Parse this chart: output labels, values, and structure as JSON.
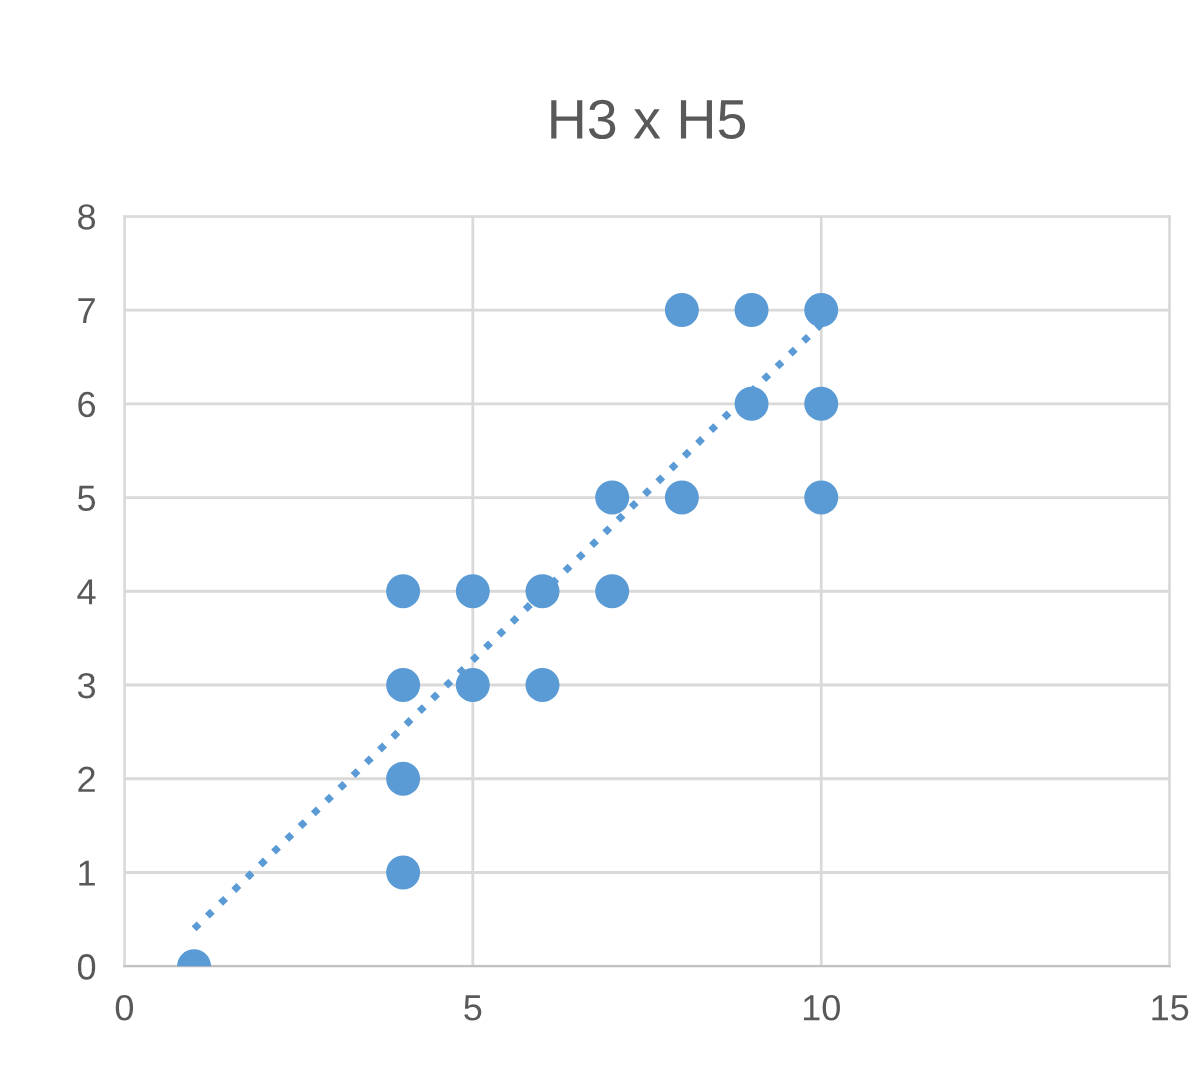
{
  "chart_data": {
    "type": "scatter",
    "title": "H3 x H5",
    "series": [
      {
        "color": "#5b9bd5",
        "marker": "circle",
        "x": [
          1,
          4,
          4,
          4,
          4,
          5,
          5,
          6,
          6,
          7,
          7,
          8,
          8,
          9,
          9,
          10,
          10,
          10
        ],
        "values": [
          0,
          1,
          2,
          3,
          4,
          3,
          4,
          3,
          4,
          4,
          5,
          5,
          7,
          6,
          7,
          5,
          6,
          7
        ]
      },
      {
        "type": "line",
        "color": "#5b9bd5",
        "line_style": "dotted",
        "marker": "none",
        "x": [
          1,
          10
        ],
        "values": [
          0.4,
          6.85
        ]
      }
    ],
    "xlim": [
      0,
      15
    ],
    "xticks": [
      0,
      5,
      10,
      15
    ],
    "ylim": [
      0,
      8
    ],
    "yticks": [
      0,
      1,
      2,
      3,
      4,
      5,
      6,
      7,
      8
    ],
    "grid": true,
    "legend": false
  }
}
